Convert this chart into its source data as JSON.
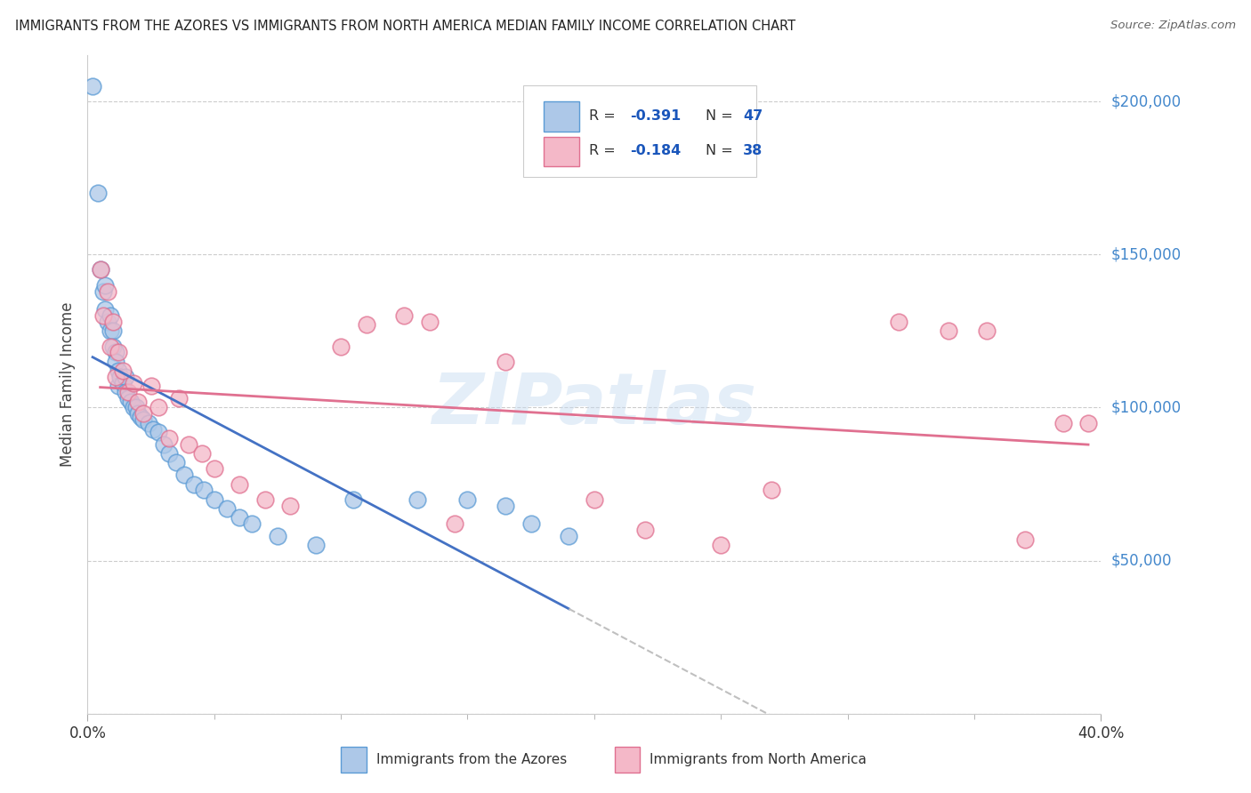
{
  "title": "IMMIGRANTS FROM THE AZORES VS IMMIGRANTS FROM NORTH AMERICA MEDIAN FAMILY INCOME CORRELATION CHART",
  "source": "Source: ZipAtlas.com",
  "ylabel": "Median Family Income",
  "yticks": [
    0,
    50000,
    100000,
    150000,
    200000
  ],
  "ytick_labels": [
    "",
    "$50,000",
    "$100,000",
    "$150,000",
    "$200,000"
  ],
  "xmin": 0.0,
  "xmax": 0.4,
  "ymin": 0,
  "ymax": 215000,
  "watermark": "ZIPatlas",
  "blue_color": "#adc8e8",
  "blue_edge_color": "#5b9bd5",
  "blue_line_color": "#4472c4",
  "pink_color": "#f4b8c8",
  "pink_edge_color": "#e07090",
  "pink_line_color": "#e07090",
  "dash_color": "#c0c0c0",
  "legend_r1": "R = ",
  "legend_v1": "-0.391",
  "legend_n1_label": "N = ",
  "legend_n1": "47",
  "legend_r2": "R = ",
  "legend_v2": "-0.184",
  "legend_n2_label": "N = ",
  "legend_n2": "38",
  "blue_x": [
    0.002,
    0.004,
    0.005,
    0.006,
    0.007,
    0.007,
    0.008,
    0.009,
    0.009,
    0.01,
    0.01,
    0.011,
    0.011,
    0.012,
    0.012,
    0.013,
    0.014,
    0.015,
    0.015,
    0.016,
    0.017,
    0.018,
    0.019,
    0.02,
    0.021,
    0.022,
    0.024,
    0.026,
    0.028,
    0.03,
    0.032,
    0.035,
    0.038,
    0.042,
    0.046,
    0.05,
    0.055,
    0.06,
    0.065,
    0.075,
    0.09,
    0.105,
    0.13,
    0.15,
    0.165,
    0.175,
    0.19
  ],
  "blue_y": [
    205000,
    170000,
    145000,
    138000,
    140000,
    132000,
    128000,
    130000,
    125000,
    125000,
    120000,
    118000,
    115000,
    112000,
    107000,
    110000,
    108000,
    110000,
    105000,
    103000,
    102000,
    100000,
    100000,
    98000,
    97000,
    96000,
    95000,
    93000,
    92000,
    88000,
    85000,
    82000,
    78000,
    75000,
    73000,
    70000,
    67000,
    64000,
    62000,
    58000,
    55000,
    70000,
    70000,
    70000,
    68000,
    62000,
    58000
  ],
  "pink_x": [
    0.005,
    0.006,
    0.008,
    0.009,
    0.01,
    0.011,
    0.012,
    0.014,
    0.016,
    0.018,
    0.02,
    0.022,
    0.025,
    0.028,
    0.032,
    0.036,
    0.04,
    0.045,
    0.05,
    0.06,
    0.07,
    0.08,
    0.1,
    0.11,
    0.125,
    0.135,
    0.145,
    0.165,
    0.2,
    0.22,
    0.25,
    0.27,
    0.32,
    0.34,
    0.355,
    0.37,
    0.385,
    0.395
  ],
  "pink_y": [
    145000,
    130000,
    138000,
    120000,
    128000,
    110000,
    118000,
    112000,
    105000,
    108000,
    102000,
    98000,
    107000,
    100000,
    90000,
    103000,
    88000,
    85000,
    80000,
    75000,
    70000,
    68000,
    120000,
    127000,
    130000,
    128000,
    62000,
    115000,
    70000,
    60000,
    55000,
    73000,
    128000,
    125000,
    125000,
    57000,
    95000,
    95000
  ]
}
